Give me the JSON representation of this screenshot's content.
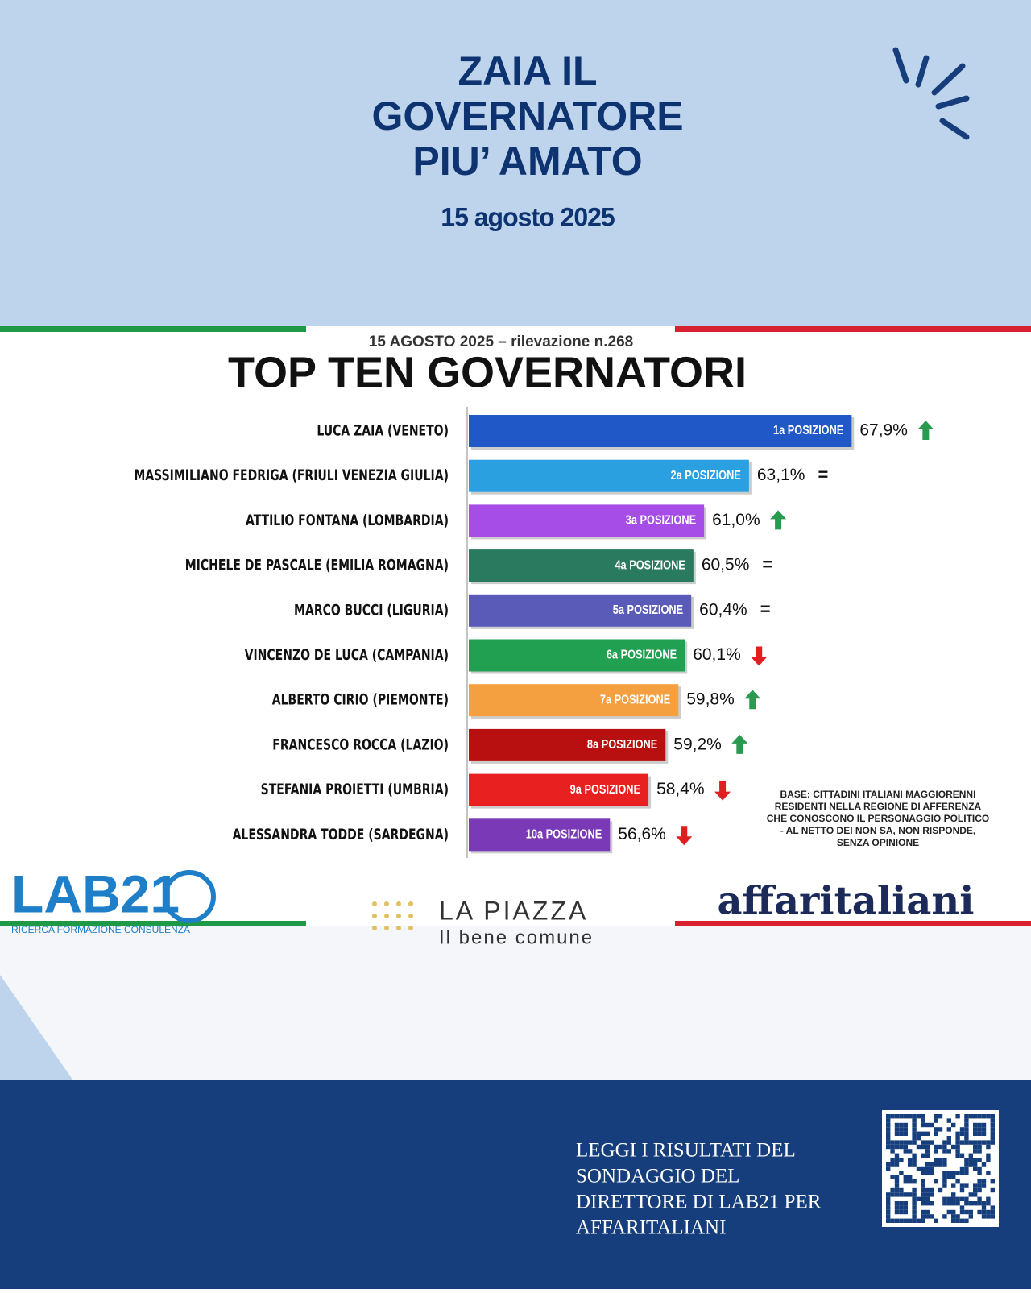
{
  "header": {
    "title_lines": [
      "ZAIA IL",
      "GOVERNATORE",
      "PIU’ AMATO"
    ],
    "date": "15 agosto 2025"
  },
  "chart_data": {
    "type": "hbar",
    "subtitle": "15 AGOSTO 2025 – rilevazione n.268",
    "title": "TOP TEN GOVERNATORI",
    "categories": [
      "LUCA ZAIA (VENETO)",
      "MASSIMILIANO FEDRIGA (FRIULI VENEZIA GIULIA)",
      "ATTILIO FONTANA (LOMBARDIA)",
      "MICHELE DE PASCALE (EMILIA ROMAGNA)",
      "MARCO BUCCI (LIGURIA)",
      "VINCENZO DE LUCA (CAMPANIA)",
      "ALBERTO CIRIO (PIEMONTE)",
      "FRANCESCO ROCCA (LAZIO)",
      "STEFANIA PROIETTI (UMBRIA)",
      "ALESSANDRA TODDE (SARDEGNA)"
    ],
    "values": [
      67.9,
      63.1,
      61.0,
      60.5,
      60.4,
      60.1,
      59.8,
      59.2,
      58.4,
      56.6
    ],
    "value_labels": [
      "67,9%",
      "63,1%",
      "61,0%",
      "60,5%",
      "60,4%",
      "60,1%",
      "59,8%",
      "59,2%",
      "58,4%",
      "56,6%"
    ],
    "bar_labels": [
      "1a POSIZIONE",
      "2a POSIZIONE",
      "3a POSIZIONE",
      "4a POSIZIONE",
      "5a POSIZIONE",
      "6a POSIZIONE",
      "7a POSIZIONE",
      "8a POSIZIONE",
      "9a POSIZIONE",
      "10a POSIZIONE"
    ],
    "colors": [
      "#2058c8",
      "#2aa0e0",
      "#a64de8",
      "#2a7a60",
      "#5a5ab8",
      "#20a050",
      "#f5a040",
      "#b81010",
      "#e82020",
      "#7a3ab8"
    ],
    "trends": [
      "up",
      "=",
      "up",
      "=",
      "=",
      "down",
      "up",
      "up",
      "down",
      "down"
    ],
    "xlim": [
      50,
      68
    ],
    "note_lines": [
      "BASE: CITTADINI ITALIANI MAGGIORENNI",
      "RESIDENTI  NELLA REGIONE DI AFFERENZA",
      "CHE CONOSCONO IL PERSONAGGIO POLITICO",
      "- AL NETTO DEI NON SA, NON RISPONDE,",
      "SENZA OPINIONE"
    ]
  },
  "logos": {
    "lab21": "LAB21",
    "lab21_tagline": "RICERCA FORMAZIONE CONSULENZA",
    "piazza": "LA PIAZZA",
    "piazza_tagline": "Il bene comune",
    "affari": "affaritaliani"
  },
  "footer": {
    "lines": [
      "LEGGI I RISULTATI DEL",
      "SONDAGGIO DEL",
      "DIRETTORE DI LAB21 PER",
      "AFFARITALIANI"
    ]
  }
}
